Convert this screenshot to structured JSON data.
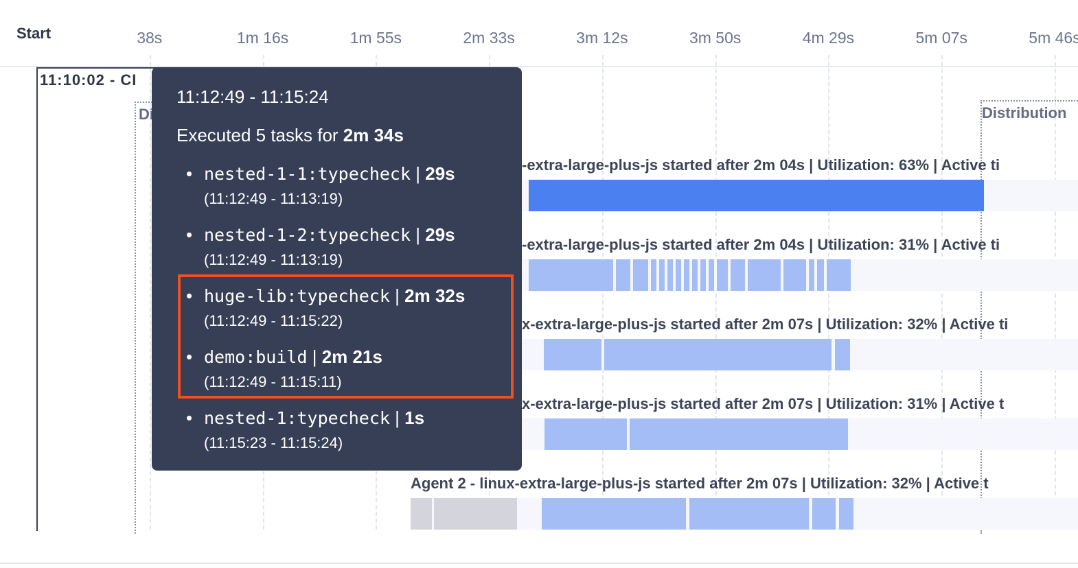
{
  "axis": {
    "start_label": "Start",
    "ticks": [
      "38s",
      "1m 16s",
      "1m 55s",
      "2m 33s",
      "3m 12s",
      "3m 50s",
      "4m 29s",
      "5m 07s",
      "5m 46s"
    ],
    "tick_seconds": [
      38.5,
      77,
      115.5,
      154,
      192.5,
      231,
      269.5,
      308,
      346.5
    ]
  },
  "ci_label": "11:10:02 - CI",
  "distribution_left_label": "Di",
  "distribution_right_label": "Distribution",
  "colors": {
    "primary_bar": "#4a80f0",
    "light_bar": "#a4bdf7",
    "setup_bar": "#d4d4dc",
    "tooltip_bg": "#363f55",
    "highlight": "#f04e23"
  },
  "rows": [
    {
      "label": "-extra-large-plus-js started after 2m 04s | Utilization: 63% | Active ti",
      "label_start": "partial",
      "style": "primary",
      "segments": [
        [
          167.5,
          322.4
        ]
      ]
    },
    {
      "label": "-extra-large-plus-js started after 2m 04s | Utilization: 31% | Active ti",
      "label_start": "partial",
      "style": "light",
      "segments": [
        [
          167.5,
          196.3
        ],
        [
          197.2,
          202.1
        ],
        [
          203,
          208.2
        ],
        [
          209.1,
          211
        ],
        [
          211.9,
          213.8
        ],
        [
          214.7,
          216.6
        ],
        [
          217.5,
          219.4
        ],
        [
          220.3,
          222.2
        ],
        [
          223.1,
          225
        ],
        [
          225.9,
          227.8
        ],
        [
          228.7,
          230.6
        ],
        [
          231.5,
          235.3
        ],
        [
          236.2,
          241.1
        ],
        [
          242.1,
          253.3
        ],
        [
          254.2,
          261.9
        ],
        [
          262.9,
          264.7
        ],
        [
          265.7,
          268
        ],
        [
          268.9,
          277.1
        ]
      ]
    },
    {
      "label": "x-extra-large-plus-js started after 2m 07s | Utilization: 32% | Active ti",
      "label_start": "partial",
      "style": "light",
      "segments": [
        [
          172.7,
          192.3
        ],
        [
          193.2,
          270.6
        ],
        [
          271.7,
          276.9
        ]
      ]
    },
    {
      "label": "x-extra-large-plus-js started after 2m 07s | Utilization: 31% | Active t",
      "label_start": "partial",
      "style": "light",
      "segments": [
        [
          172.9,
          200.9
        ],
        [
          201.9,
          276.2
        ]
      ]
    },
    {
      "label": "Agent 2 - linux-extra-large-plus-js started after 2m 07s | Utilization: 32% | Active t",
      "label_start": "full",
      "style": "light",
      "setup_segments": [
        [
          127.3,
          134.6
        ],
        [
          135.3,
          163.6
        ]
      ],
      "segments": [
        [
          172,
          221
        ],
        [
          222.2,
          262.9
        ],
        [
          264,
          272
        ],
        [
          273.1,
          278
        ]
      ]
    }
  ],
  "tooltip": {
    "range": "11:12:49 - 11:15:24",
    "summary_prefix": "Executed 5 tasks for ",
    "summary_duration": "2m 34s",
    "tasks": [
      {
        "name": "nested-1-1:typecheck",
        "duration": "29s",
        "range": "(11:12:49 - 11:13:19)",
        "highlighted": false
      },
      {
        "name": "nested-1-2:typecheck",
        "duration": "29s",
        "range": "(11:12:49 - 11:13:19)",
        "highlighted": false
      },
      {
        "name": "huge-lib:typecheck",
        "duration": "2m 32s",
        "range": "(11:12:49 - 11:15:22)",
        "highlighted": true
      },
      {
        "name": "demo:build",
        "duration": "2m 21s",
        "range": "(11:12:49 - 11:15:11)",
        "highlighted": true
      },
      {
        "name": "nested-1:typecheck",
        "duration": "1s",
        "range": "(11:15:23 - 11:15:24)",
        "highlighted": false
      }
    ]
  }
}
